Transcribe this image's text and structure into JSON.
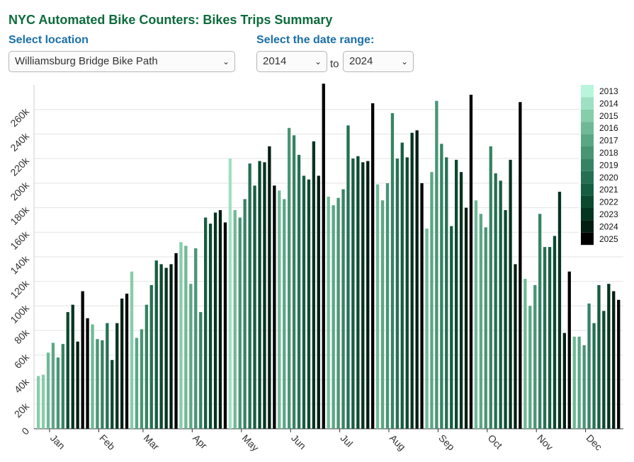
{
  "header": {
    "title": "NYC Automated Bike Counters: Bikes Trips Summary",
    "location_label": "Select location",
    "location_value": "Williamsburg Bridge Bike Path",
    "date_label": "Select the date range:",
    "date_from": "2014",
    "to_text": "to",
    "date_to": "2024"
  },
  "chart_data": {
    "type": "bar",
    "title": "NYC Automated Bike Counters: Bikes Trips Summary",
    "xlabel": "",
    "ylabel": "",
    "ylim": [
      0,
      280000
    ],
    "y_ticks": [
      0,
      20000,
      40000,
      60000,
      80000,
      100000,
      120000,
      140000,
      160000,
      180000,
      200000,
      220000,
      240000,
      260000
    ],
    "y_tick_labels": [
      "0",
      "20k",
      "40k",
      "60k",
      "80k",
      "100k",
      "120k",
      "140k",
      "160k",
      "180k",
      "200k",
      "220k",
      "240k",
      "260k"
    ],
    "grid": true,
    "legend_position": "top-right",
    "x_labels": [
      "Jan",
      "Feb",
      "Mar",
      "Apr",
      "May",
      "Jun",
      "Jul",
      "Aug",
      "Sep",
      "Oct",
      "Nov",
      "Dec"
    ],
    "series_years": [
      "2013",
      "2014",
      "2015",
      "2016",
      "2017",
      "2018",
      "2019",
      "2020",
      "2021",
      "2022",
      "2023",
      "2024",
      "2025"
    ],
    "colors": [
      "#b8f5dc",
      "#9fe0c3",
      "#86cdaa",
      "#6fb996",
      "#5aa785",
      "#489574",
      "#368364",
      "#257053",
      "#165e42",
      "#0c4a30",
      "#053421",
      "#021e12",
      "#000000"
    ],
    "notes": "Weekly bars per month, each colored by year index (0=2013 ... 12=2025). Values in trips.",
    "months": [
      {
        "label": "Jan",
        "weeks": [
          {
            "year": 2,
            "value": 43000
          },
          {
            "year": 2,
            "value": 44000
          },
          {
            "year": 3,
            "value": 62000
          },
          {
            "year": 4,
            "value": 70000
          },
          {
            "year": 5,
            "value": 58000
          },
          {
            "year": 6,
            "value": 69000
          },
          {
            "year": 9,
            "value": 95000
          },
          {
            "year": 10,
            "value": 101000
          },
          {
            "year": 11,
            "value": 71000
          },
          {
            "year": 12,
            "value": 112000
          }
        ]
      },
      {
        "label": "Feb",
        "weeks": [
          {
            "year": 12,
            "value": 90000
          },
          {
            "year": 3,
            "value": 85000
          },
          {
            "year": 5,
            "value": 73000
          },
          {
            "year": 6,
            "value": 72000
          },
          {
            "year": 7,
            "value": 86000
          },
          {
            "year": 9,
            "value": 56000
          },
          {
            "year": 10,
            "value": 86000
          },
          {
            "year": 11,
            "value": 106000
          },
          {
            "year": 12,
            "value": 110000
          }
        ]
      },
      {
        "label": "Mar",
        "weeks": [
          {
            "year": 2,
            "value": 128000
          },
          {
            "year": 4,
            "value": 74000
          },
          {
            "year": 5,
            "value": 81000
          },
          {
            "year": 6,
            "value": 101000
          },
          {
            "year": 7,
            "value": 117000
          },
          {
            "year": 8,
            "value": 137000
          },
          {
            "year": 9,
            "value": 134000
          },
          {
            "year": 10,
            "value": 131000
          },
          {
            "year": 11,
            "value": 134000
          },
          {
            "year": 12,
            "value": 143000
          }
        ]
      },
      {
        "label": "Apr",
        "weeks": [
          {
            "year": 2,
            "value": 152000
          },
          {
            "year": 3,
            "value": 149000
          },
          {
            "year": 4,
            "value": 118000
          },
          {
            "year": 5,
            "value": 147000
          },
          {
            "year": 6,
            "value": 95000
          },
          {
            "year": 8,
            "value": 172000
          },
          {
            "year": 9,
            "value": 167000
          },
          {
            "year": 10,
            "value": 176000
          },
          {
            "year": 11,
            "value": 178000
          },
          {
            "year": 12,
            "value": 168000
          }
        ]
      },
      {
        "label": "May",
        "weeks": [
          {
            "year": 1,
            "value": 220000
          },
          {
            "year": 3,
            "value": 178000
          },
          {
            "year": 5,
            "value": 172000
          },
          {
            "year": 6,
            "value": 187000
          },
          {
            "year": 7,
            "value": 216000
          },
          {
            "year": 8,
            "value": 198000
          },
          {
            "year": 9,
            "value": 218000
          },
          {
            "year": 10,
            "value": 217000
          },
          {
            "year": 11,
            "value": 230000
          },
          {
            "year": 12,
            "value": 198000
          }
        ]
      },
      {
        "label": "Jun",
        "weeks": [
          {
            "year": 3,
            "value": 194000
          },
          {
            "year": 4,
            "value": 187000
          },
          {
            "year": 5,
            "value": 245000
          },
          {
            "year": 6,
            "value": 239000
          },
          {
            "year": 7,
            "value": 223000
          },
          {
            "year": 8,
            "value": 206000
          },
          {
            "year": 9,
            "value": 203000
          },
          {
            "year": 10,
            "value": 234000
          },
          {
            "year": 11,
            "value": 206000
          },
          {
            "year": 12,
            "value": 281000
          }
        ]
      },
      {
        "label": "Jul",
        "weeks": [
          {
            "year": 3,
            "value": 189000
          },
          {
            "year": 4,
            "value": 182000
          },
          {
            "year": 5,
            "value": 188000
          },
          {
            "year": 6,
            "value": 195000
          },
          {
            "year": 7,
            "value": 247000
          },
          {
            "year": 8,
            "value": 220000
          },
          {
            "year": 9,
            "value": 222000
          },
          {
            "year": 10,
            "value": 217000
          },
          {
            "year": 11,
            "value": 218000
          },
          {
            "year": 12,
            "value": 265000
          }
        ]
      },
      {
        "label": "Aug",
        "weeks": [
          {
            "year": 3,
            "value": 199000
          },
          {
            "year": 4,
            "value": 186000
          },
          {
            "year": 5,
            "value": 200000
          },
          {
            "year": 6,
            "value": 257000
          },
          {
            "year": 7,
            "value": 220000
          },
          {
            "year": 8,
            "value": 233000
          },
          {
            "year": 9,
            "value": 221000
          },
          {
            "year": 10,
            "value": 241000
          },
          {
            "year": 11,
            "value": 243000
          },
          {
            "year": 12,
            "value": 200000
          }
        ]
      },
      {
        "label": "Sep",
        "weeks": [
          {
            "year": 3,
            "value": 163000
          },
          {
            "year": 4,
            "value": 209000
          },
          {
            "year": 5,
            "value": 267000
          },
          {
            "year": 6,
            "value": 232000
          },
          {
            "year": 7,
            "value": 221000
          },
          {
            "year": 8,
            "value": 165000
          },
          {
            "year": 9,
            "value": 219000
          },
          {
            "year": 10,
            "value": 209000
          },
          {
            "year": 11,
            "value": 180000
          },
          {
            "year": 12,
            "value": 272000
          }
        ]
      },
      {
        "label": "Oct",
        "weeks": [
          {
            "year": 3,
            "value": 186000
          },
          {
            "year": 4,
            "value": 175000
          },
          {
            "year": 5,
            "value": 164000
          },
          {
            "year": 6,
            "value": 230000
          },
          {
            "year": 7,
            "value": 208000
          },
          {
            "year": 8,
            "value": 202000
          },
          {
            "year": 9,
            "value": 178000
          },
          {
            "year": 10,
            "value": 219000
          },
          {
            "year": 11,
            "value": 134000
          },
          {
            "year": 12,
            "value": 266000
          }
        ]
      },
      {
        "label": "Nov",
        "weeks": [
          {
            "year": 3,
            "value": 122000
          },
          {
            "year": 4,
            "value": 100000
          },
          {
            "year": 5,
            "value": 117000
          },
          {
            "year": 6,
            "value": 175000
          },
          {
            "year": 7,
            "value": 148000
          },
          {
            "year": 8,
            "value": 148000
          },
          {
            "year": 9,
            "value": 157000
          },
          {
            "year": 10,
            "value": 193000
          },
          {
            "year": 11,
            "value": 78000
          },
          {
            "year": 12,
            "value": 128000
          }
        ]
      },
      {
        "label": "Dec",
        "weeks": [
          {
            "year": 3,
            "value": 75000
          },
          {
            "year": 4,
            "value": 75000
          },
          {
            "year": 5,
            "value": 68000
          },
          {
            "year": 6,
            "value": 102000
          },
          {
            "year": 7,
            "value": 86000
          },
          {
            "year": 8,
            "value": 117000
          },
          {
            "year": 9,
            "value": 96000
          },
          {
            "year": 10,
            "value": 118000
          },
          {
            "year": 11,
            "value": 112000
          },
          {
            "year": 12,
            "value": 105000
          }
        ]
      }
    ]
  }
}
